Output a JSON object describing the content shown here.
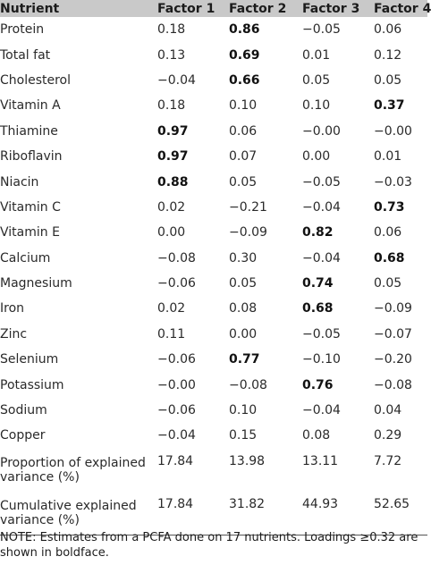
{
  "table": {
    "headers": [
      "Nutrient",
      "Factor 1",
      "Factor 2",
      "Factor 3",
      "Factor 4"
    ],
    "rows": [
      {
        "label": "Protein",
        "values": [
          "0.18",
          "0.86",
          "−0.05",
          "0.06"
        ],
        "bold": [
          false,
          true,
          false,
          false
        ]
      },
      {
        "label": "Total fat",
        "values": [
          "0.13",
          "0.69",
          "0.01",
          "0.12"
        ],
        "bold": [
          false,
          true,
          false,
          false
        ]
      },
      {
        "label": "Cholesterol",
        "values": [
          "−0.04",
          "0.66",
          "0.05",
          "0.05"
        ],
        "bold": [
          false,
          true,
          false,
          false
        ]
      },
      {
        "label": "Vitamin A",
        "values": [
          "0.18",
          "0.10",
          "0.10",
          "0.37"
        ],
        "bold": [
          false,
          false,
          false,
          true
        ]
      },
      {
        "label": "Thiamine",
        "values": [
          "0.97",
          "0.06",
          "−0.00",
          "−0.00"
        ],
        "bold": [
          true,
          false,
          false,
          false
        ]
      },
      {
        "label": "Riboflavin",
        "values": [
          "0.97",
          "0.07",
          "0.00",
          "0.01"
        ],
        "bold": [
          true,
          false,
          false,
          false
        ]
      },
      {
        "label": "Niacin",
        "values": [
          "0.88",
          "0.05",
          "−0.05",
          "−0.03"
        ],
        "bold": [
          true,
          false,
          false,
          false
        ]
      },
      {
        "label": "Vitamin C",
        "values": [
          "0.02",
          "−0.21",
          "−0.04",
          "0.73"
        ],
        "bold": [
          false,
          false,
          false,
          true
        ]
      },
      {
        "label": "Vitamin E",
        "values": [
          "0.00",
          "−0.09",
          "0.82",
          "0.06"
        ],
        "bold": [
          false,
          false,
          true,
          false
        ]
      },
      {
        "label": "Calcium",
        "values": [
          "−0.08",
          "0.30",
          "−0.04",
          "0.68"
        ],
        "bold": [
          false,
          false,
          false,
          true
        ]
      },
      {
        "label": "Magnesium",
        "values": [
          "−0.06",
          "0.05",
          "0.74",
          "0.05"
        ],
        "bold": [
          false,
          false,
          true,
          false
        ]
      },
      {
        "label": "Iron",
        "values": [
          "0.02",
          "0.08",
          "0.68",
          "−0.09"
        ],
        "bold": [
          false,
          false,
          true,
          false
        ]
      },
      {
        "label": "Zinc",
        "values": [
          "0.11",
          "0.00",
          "−0.05",
          "−0.07"
        ],
        "bold": [
          false,
          false,
          false,
          false
        ]
      },
      {
        "label": "Selenium",
        "values": [
          "−0.06",
          "0.77",
          "−0.10",
          "−0.20"
        ],
        "bold": [
          false,
          true,
          false,
          false
        ]
      },
      {
        "label": "Potassium",
        "values": [
          "−0.00",
          "−0.08",
          "0.76",
          "−0.08"
        ],
        "bold": [
          false,
          false,
          true,
          false
        ]
      },
      {
        "label": "Sodium",
        "values": [
          "−0.06",
          "0.10",
          "−0.04",
          "0.04"
        ],
        "bold": [
          false,
          false,
          false,
          false
        ]
      },
      {
        "label": "Copper",
        "values": [
          "−0.04",
          "0.15",
          "0.08",
          "0.29"
        ],
        "bold": [
          false,
          false,
          false,
          false
        ]
      }
    ],
    "summary_rows": [
      {
        "label": "Proportion of explained variance (%)",
        "values": [
          "17.84",
          "13.98",
          "13.11",
          "7.72"
        ]
      },
      {
        "label": "Cumulative explained variance (%)",
        "values": [
          "17.84",
          "31.82",
          "44.93",
          "52.65"
        ]
      }
    ]
  },
  "note": "NOTE: Estimates from a PCFA done on 17 nutrients. Loadings ≥0.32 are shown in boldface."
}
